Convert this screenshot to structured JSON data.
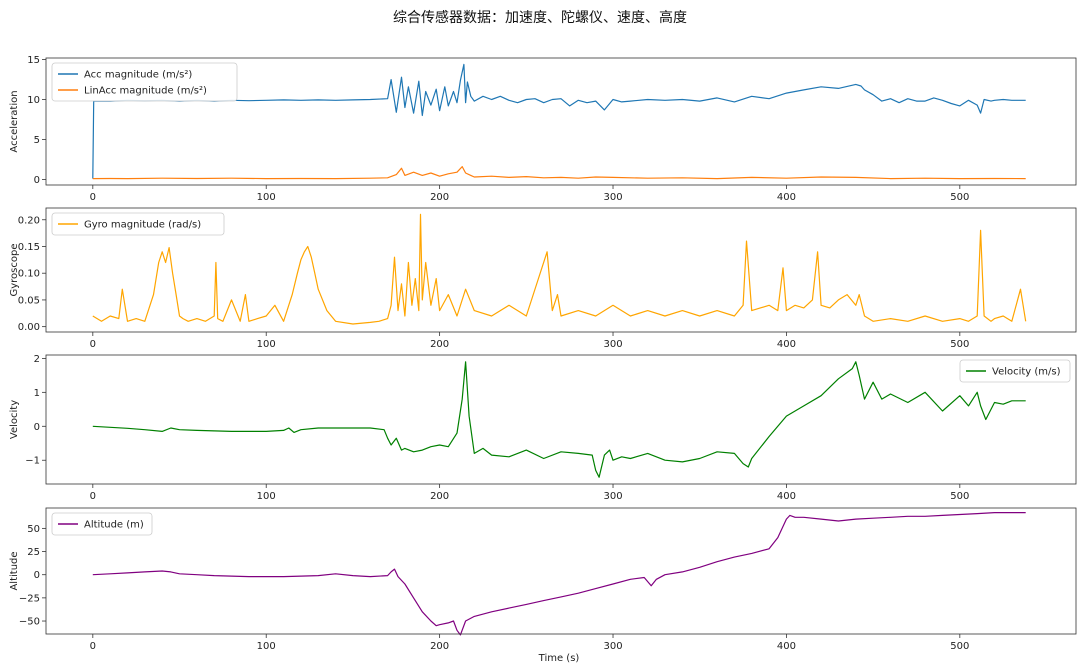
{
  "figure": {
    "title": "综合传感器数据：加速度、陀螺仪、速度、高度",
    "xlabel": "Time (s)"
  },
  "chart_data": [
    {
      "type": "line",
      "ylabel": "Acceleration",
      "xlim": [
        -27,
        567
      ],
      "ylim": [
        -0.7,
        15.2
      ],
      "xticks": [
        0,
        100,
        200,
        300,
        400,
        500
      ],
      "yticks": [
        0,
        5,
        10,
        15
      ],
      "legend_position": "top-left",
      "series": [
        {
          "name": "Acc magnitude (m/s²)",
          "color": "#1f77b4",
          "x": [
            0,
            0.5,
            10,
            20,
            30,
            40,
            50,
            60,
            70,
            80,
            90,
            100,
            110,
            120,
            130,
            140,
            150,
            160,
            170,
            172,
            175,
            178,
            180,
            182,
            185,
            188,
            190,
            192,
            195,
            198,
            200,
            203,
            205,
            208,
            210,
            212,
            214,
            215,
            216,
            218,
            220,
            225,
            230,
            235,
            240,
            245,
            250,
            255,
            260,
            265,
            270,
            275,
            280,
            285,
            290,
            295,
            300,
            305,
            310,
            315,
            320,
            330,
            340,
            350,
            360,
            370,
            380,
            390,
            400,
            410,
            420,
            430,
            440,
            443,
            445,
            450,
            455,
            460,
            465,
            470,
            475,
            480,
            485,
            490,
            495,
            500,
            505,
            510,
            512,
            514,
            518,
            520,
            525,
            530,
            538
          ],
          "y": [
            0.1,
            9.8,
            9.8,
            9.9,
            9.85,
            9.9,
            9.8,
            9.9,
            9.8,
            9.9,
            9.85,
            9.9,
            9.95,
            9.9,
            9.95,
            9.9,
            9.95,
            10,
            10.1,
            12.5,
            8.4,
            12.8,
            9.0,
            11.6,
            8.3,
            12.3,
            8.0,
            11.0,
            9.3,
            11.3,
            8.6,
            11.6,
            9.2,
            11.0,
            9.6,
            12.4,
            14.4,
            9.6,
            12.2,
            10.4,
            9.8,
            10.4,
            10.0,
            10.4,
            9.9,
            9.6,
            10.0,
            10.1,
            9.6,
            10.0,
            10.1,
            9.2,
            9.9,
            9.6,
            9.8,
            8.7,
            10.0,
            9.7,
            9.8,
            9.9,
            10.0,
            9.9,
            10.0,
            9.8,
            10.2,
            9.7,
            10.4,
            10.1,
            10.8,
            11.2,
            11.6,
            11.4,
            11.9,
            11.7,
            11.2,
            10.6,
            9.8,
            10.1,
            9.6,
            10.1,
            9.8,
            9.8,
            10.2,
            9.9,
            9.5,
            9.2,
            9.9,
            9.3,
            8.3,
            10.0,
            9.8,
            9.9,
            10.0,
            9.9,
            9.9
          ]
        },
        {
          "name": "LinAcc magnitude (m/s²)",
          "color": "#ff7f0e",
          "x": [
            0,
            10,
            20,
            40,
            60,
            80,
            100,
            120,
            140,
            160,
            170,
            175,
            178,
            180,
            185,
            190,
            195,
            200,
            205,
            210,
            213,
            215,
            218,
            220,
            230,
            240,
            250,
            260,
            270,
            280,
            290,
            300,
            320,
            340,
            360,
            380,
            400,
            420,
            440,
            460,
            480,
            500,
            520,
            538
          ],
          "y": [
            0.1,
            0.12,
            0.1,
            0.15,
            0.12,
            0.15,
            0.1,
            0.12,
            0.1,
            0.15,
            0.2,
            0.6,
            1.4,
            0.5,
            0.9,
            0.5,
            0.8,
            0.4,
            0.7,
            0.9,
            1.6,
            0.8,
            0.5,
            0.3,
            0.4,
            0.25,
            0.35,
            0.2,
            0.25,
            0.15,
            0.3,
            0.25,
            0.15,
            0.2,
            0.1,
            0.25,
            0.15,
            0.3,
            0.25,
            0.1,
            0.15,
            0.1,
            0.12,
            0.1
          ]
        }
      ]
    },
    {
      "type": "line",
      "ylabel": "Gyroscope",
      "xlim": [
        -27,
        567
      ],
      "ylim": [
        -0.01,
        0.222
      ],
      "xticks": [
        0,
        100,
        200,
        300,
        400,
        500
      ],
      "yticks": [
        0.0,
        0.05,
        0.1,
        0.15,
        0.2
      ],
      "legend_position": "top-left",
      "series": [
        {
          "name": "Gyro magnitude (rad/s)",
          "color": "#ffa500",
          "x": [
            0,
            5,
            10,
            15,
            17,
            20,
            25,
            30,
            35,
            38,
            40,
            42,
            44,
            46,
            48,
            50,
            52,
            55,
            60,
            65,
            70,
            71,
            72,
            75,
            80,
            85,
            88,
            90,
            95,
            100,
            105,
            110,
            115,
            118,
            120,
            122,
            124,
            126,
            128,
            130,
            135,
            140,
            150,
            160,
            165,
            170,
            172,
            174,
            176,
            178,
            180,
            182,
            184,
            186,
            188,
            189,
            190,
            192,
            195,
            198,
            200,
            205,
            210,
            215,
            220,
            230,
            240,
            250,
            262,
            265,
            268,
            270,
            280,
            290,
            300,
            310,
            320,
            330,
            340,
            350,
            360,
            370,
            375,
            377,
            380,
            390,
            395,
            398,
            400,
            405,
            410,
            415,
            418,
            420,
            425,
            430,
            435,
            440,
            442,
            445,
            450,
            460,
            470,
            480,
            490,
            500,
            505,
            510,
            512,
            514,
            518,
            520,
            525,
            530,
            535,
            538
          ],
          "y": [
            0.02,
            0.01,
            0.02,
            0.015,
            0.07,
            0.01,
            0.015,
            0.01,
            0.06,
            0.12,
            0.14,
            0.12,
            0.148,
            0.1,
            0.06,
            0.02,
            0.015,
            0.01,
            0.015,
            0.01,
            0.02,
            0.12,
            0.015,
            0.01,
            0.05,
            0.01,
            0.06,
            0.01,
            0.015,
            0.02,
            0.04,
            0.01,
            0.06,
            0.1,
            0.125,
            0.14,
            0.15,
            0.13,
            0.1,
            0.07,
            0.03,
            0.01,
            0.005,
            0.008,
            0.01,
            0.015,
            0.04,
            0.13,
            0.03,
            0.08,
            0.02,
            0.12,
            0.04,
            0.09,
            0.03,
            0.21,
            0.05,
            0.12,
            0.04,
            0.09,
            0.03,
            0.06,
            0.02,
            0.07,
            0.03,
            0.02,
            0.04,
            0.02,
            0.14,
            0.03,
            0.06,
            0.02,
            0.03,
            0.02,
            0.04,
            0.02,
            0.03,
            0.02,
            0.03,
            0.02,
            0.03,
            0.02,
            0.04,
            0.16,
            0.03,
            0.04,
            0.03,
            0.11,
            0.03,
            0.04,
            0.035,
            0.05,
            0.14,
            0.04,
            0.035,
            0.05,
            0.06,
            0.04,
            0.06,
            0.02,
            0.01,
            0.015,
            0.01,
            0.02,
            0.01,
            0.015,
            0.01,
            0.02,
            0.18,
            0.02,
            0.01,
            0.015,
            0.02,
            0.01,
            0.07,
            0.01
          ]
        }
      ]
    },
    {
      "type": "line",
      "ylabel": "Velocity",
      "xlim": [
        -27,
        567
      ],
      "ylim": [
        -1.7,
        2.1
      ],
      "xticks": [
        0,
        100,
        200,
        300,
        400,
        500
      ],
      "yticks": [
        -1,
        0,
        1,
        2
      ],
      "legend_position": "top-right",
      "series": [
        {
          "name": "Velocity (m/s)",
          "color": "#008000",
          "x": [
            0,
            10,
            20,
            30,
            40,
            45,
            50,
            60,
            80,
            100,
            110,
            113,
            116,
            120,
            130,
            140,
            160,
            168,
            170,
            172,
            175,
            178,
            180,
            185,
            190,
            195,
            200,
            205,
            210,
            213,
            215,
            217,
            220,
            225,
            230,
            240,
            250,
            260,
            270,
            280,
            288,
            290,
            292,
            295,
            298,
            300,
            305,
            310,
            320,
            330,
            340,
            350,
            360,
            370,
            375,
            378,
            380,
            390,
            400,
            410,
            420,
            430,
            438,
            440,
            442,
            445,
            450,
            455,
            460,
            470,
            480,
            490,
            500,
            505,
            510,
            512,
            515,
            520,
            525,
            530,
            538
          ],
          "y": [
            0,
            -0.03,
            -0.06,
            -0.1,
            -0.15,
            -0.05,
            -0.1,
            -0.12,
            -0.15,
            -0.15,
            -0.12,
            -0.05,
            -0.18,
            -0.1,
            -0.05,
            -0.05,
            -0.05,
            -0.1,
            -0.35,
            -0.55,
            -0.35,
            -0.7,
            -0.65,
            -0.75,
            -0.7,
            -0.6,
            -0.55,
            -0.6,
            -0.2,
            0.8,
            1.9,
            0.3,
            -0.8,
            -0.65,
            -0.85,
            -0.9,
            -0.7,
            -0.95,
            -0.75,
            -0.8,
            -0.85,
            -1.3,
            -1.5,
            -0.85,
            -0.7,
            -1.0,
            -0.9,
            -0.95,
            -0.8,
            -1.0,
            -1.05,
            -0.95,
            -0.75,
            -0.8,
            -1.1,
            -1.2,
            -0.95,
            -0.3,
            0.3,
            0.6,
            0.9,
            1.4,
            1.7,
            1.9,
            1.5,
            0.8,
            1.3,
            0.8,
            0.95,
            0.7,
            1.0,
            0.45,
            0.9,
            0.6,
            1.0,
            0.6,
            0.2,
            0.7,
            0.65,
            0.75,
            0.75
          ]
        }
      ]
    },
    {
      "type": "line",
      "ylabel": "Altitude",
      "xlim": [
        -27,
        567
      ],
      "ylim": [
        -64,
        72
      ],
      "xticks": [
        0,
        100,
        200,
        300,
        400,
        500
      ],
      "yticks": [
        -50,
        -25,
        0,
        25,
        50
      ],
      "legend_position": "top-left",
      "series": [
        {
          "name": "Altitude (m)",
          "color": "#800080",
          "x": [
            0,
            10,
            20,
            30,
            40,
            45,
            50,
            60,
            70,
            80,
            90,
            100,
            110,
            120,
            130,
            140,
            150,
            160,
            170,
            172,
            174,
            176,
            180,
            185,
            190,
            195,
            198,
            200,
            205,
            208,
            210,
            212,
            215,
            220,
            230,
            240,
            250,
            260,
            270,
            280,
            290,
            300,
            310,
            318,
            322,
            325,
            330,
            340,
            350,
            360,
            370,
            380,
            390,
            395,
            400,
            402,
            405,
            410,
            420,
            430,
            440,
            450,
            460,
            470,
            480,
            490,
            500,
            510,
            520,
            530,
            538
          ],
          "y": [
            0,
            1,
            2,
            3,
            4,
            3,
            1,
            0,
            -1,
            -1.5,
            -2,
            -2,
            -2,
            -1.5,
            -1,
            1,
            -1,
            -2,
            -1,
            3,
            6,
            -2,
            -10,
            -25,
            -40,
            -50,
            -55,
            -54,
            -52,
            -50,
            -60,
            -65,
            -50,
            -45,
            -40,
            -36,
            -32,
            -28,
            -24,
            -20,
            -15,
            -10,
            -5,
            -3,
            -12,
            -5,
            0,
            3,
            8,
            14,
            19,
            23,
            28,
            40,
            60,
            64,
            62,
            62,
            60,
            58,
            60,
            61,
            62,
            63,
            63,
            64,
            65,
            66,
            67,
            67,
            67
          ]
        }
      ]
    }
  ]
}
